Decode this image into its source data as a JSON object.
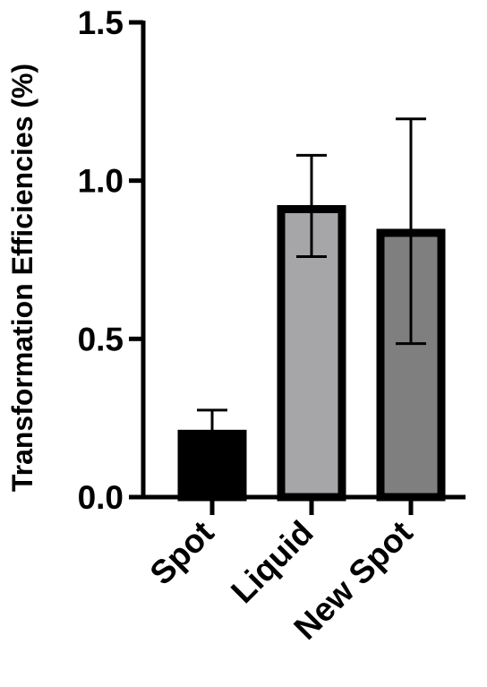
{
  "chart_data": {
    "type": "bar",
    "categories": [
      "Spot",
      "Liquid",
      "New Spot"
    ],
    "values": [
      0.2,
      0.91,
      0.835
    ],
    "error_upper": [
      0.275,
      1.08,
      1.195
    ],
    "error_lower": [
      0.2,
      0.76,
      0.485
    ],
    "bar_colors": [
      "#000000",
      "#a6a6a8",
      "#7f7f7f"
    ],
    "xlabel": "",
    "ylabel": "Transformation Efficiencies (%)",
    "ylim": [
      0,
      1.5
    ],
    "yticks": [
      0.0,
      0.5,
      1.0,
      1.5
    ],
    "ytick_labels": [
      "0.0",
      "0.5",
      "1.0",
      "1.5"
    ],
    "grid": false,
    "legend": "none"
  }
}
